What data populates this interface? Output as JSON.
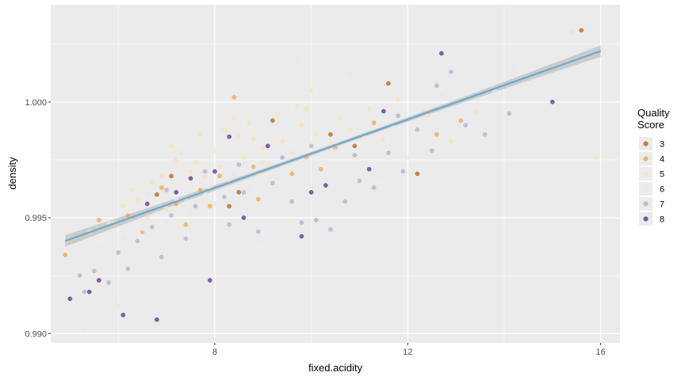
{
  "chart_data": {
    "type": "scatter",
    "title": "",
    "xlabel": "fixed.acidity",
    "ylabel": "density",
    "xlim": [
      4.6,
      16.4
    ],
    "ylim": [
      0.9896,
      1.0042
    ],
    "x_ticks": [
      8,
      12,
      16
    ],
    "y_ticks": [
      0.99,
      0.995,
      1.0
    ],
    "y_tick_labels": [
      "0.990",
      "0.995",
      "1.000"
    ],
    "grid": true,
    "legend": {
      "title": "Quality\nScore",
      "placement": "right",
      "entries": [
        "3",
        "4",
        "5",
        "6",
        "7",
        "8"
      ]
    },
    "series_colors": {
      "3": "#b35806",
      "4": "#f1a340",
      "5": "#fee0b6",
      "6": "#e7e7ef",
      "7": "#b2abd2",
      "8": "#542788"
    },
    "series": [
      {
        "name": "3",
        "points": [
          [
            8.3,
            0.9955
          ],
          [
            10.4,
            0.9986
          ],
          [
            7.1,
            0.9968
          ],
          [
            11.6,
            1.0008
          ],
          [
            6.8,
            0.996
          ],
          [
            9.2,
            0.9992
          ],
          [
            15.6,
            1.0031
          ],
          [
            8.5,
            0.9961
          ],
          [
            12.2,
            0.9969
          ],
          [
            10.9,
            0.9981
          ]
        ]
      },
      {
        "name": "4",
        "points": [
          [
            7.7,
            0.9962
          ],
          [
            8.1,
            0.9968
          ],
          [
            6.2,
            0.9951
          ],
          [
            7.4,
            0.9947
          ],
          [
            8.8,
            0.9972
          ],
          [
            9.9,
            0.9976
          ],
          [
            10.5,
            0.998
          ],
          [
            12.6,
            0.9986
          ],
          [
            6.9,
            0.9963
          ],
          [
            7.2,
            0.9956
          ],
          [
            5.6,
            0.9949
          ],
          [
            8.4,
            1.0002
          ],
          [
            11.3,
            0.9991
          ],
          [
            9.6,
            0.9969
          ],
          [
            7.9,
            0.9955
          ],
          [
            6.5,
            0.9944
          ],
          [
            10.2,
            0.9971
          ],
          [
            13.1,
            0.9992
          ],
          [
            4.9,
            0.9934
          ],
          [
            8.9,
            0.9958
          ]
        ]
      },
      {
        "name": "5",
        "points": [
          [
            7.8,
            0.9968
          ],
          [
            7.5,
            0.997
          ],
          [
            8.1,
            0.9972
          ],
          [
            7.0,
            0.9962
          ],
          [
            6.7,
            0.9965
          ],
          [
            8.6,
            0.9976
          ],
          [
            9.0,
            0.998
          ],
          [
            7.3,
            0.9978
          ],
          [
            8.3,
            0.9966
          ],
          [
            9.4,
            0.9983
          ],
          [
            10.1,
            0.9986
          ],
          [
            6.4,
            0.9958
          ],
          [
            7.6,
            0.9974
          ],
          [
            8.0,
            0.9979
          ],
          [
            8.8,
            0.9984
          ],
          [
            9.8,
            0.999
          ],
          [
            10.6,
            0.9993
          ],
          [
            11.2,
            0.9997
          ],
          [
            6.1,
            0.9955
          ],
          [
            7.9,
            0.9963
          ],
          [
            8.5,
            0.9985
          ],
          [
            9.3,
            0.9995
          ],
          [
            10.0,
            1.0005
          ],
          [
            7.2,
            0.9975
          ],
          [
            6.9,
            0.9968
          ],
          [
            8.2,
            0.9988
          ],
          [
            9.7,
            0.9998
          ],
          [
            11.8,
            1.0001
          ],
          [
            12.4,
            0.9994
          ],
          [
            5.9,
            0.9948
          ],
          [
            7.1,
            0.9981
          ],
          [
            8.7,
            0.9991
          ],
          [
            9.1,
            0.9973
          ],
          [
            10.4,
            0.9982
          ],
          [
            6.6,
            0.995
          ],
          [
            7.4,
            0.9958
          ],
          [
            8.9,
            0.9969
          ],
          [
            9.6,
            0.9978
          ],
          [
            10.8,
            0.9988
          ],
          [
            11.5,
            0.9984
          ],
          [
            6.3,
            0.9962
          ],
          [
            7.7,
            0.9986
          ],
          [
            8.4,
            0.9993
          ],
          [
            9.9,
            0.9997
          ],
          [
            13.4,
            0.9996
          ],
          [
            15.4,
            1.003
          ],
          [
            15.9,
            0.9976
          ],
          [
            5.4,
            0.9944
          ],
          [
            12.9,
            0.9983
          ],
          [
            7.0,
            0.9954
          ]
        ]
      },
      {
        "name": "6",
        "points": [
          [
            6.8,
            0.9952
          ],
          [
            7.2,
            0.9958
          ],
          [
            7.8,
            0.9961
          ],
          [
            8.4,
            0.9969
          ],
          [
            9.0,
            0.9974
          ],
          [
            5.6,
            0.9937
          ],
          [
            6.1,
            0.9941
          ],
          [
            6.5,
            0.9945
          ],
          [
            7.0,
            0.9948
          ],
          [
            7.5,
            0.9953
          ],
          [
            8.0,
            0.9956
          ],
          [
            8.7,
            0.9962
          ],
          [
            9.3,
            0.9967
          ],
          [
            9.9,
            0.9975
          ],
          [
            10.5,
            0.9979
          ],
          [
            11.1,
            0.9985
          ],
          [
            11.7,
            0.9989
          ],
          [
            12.3,
            0.9993
          ],
          [
            13.0,
            0.9997
          ],
          [
            13.8,
            1.0005
          ],
          [
            14.6,
            1.0009
          ],
          [
            5.1,
            0.9925
          ],
          [
            5.3,
            0.9902
          ],
          [
            6.0,
            0.9912
          ],
          [
            6.3,
            0.993
          ],
          [
            7.9,
            0.9901
          ],
          [
            8.9,
            0.994
          ],
          [
            10.2,
            0.9961
          ],
          [
            11.4,
            0.9968
          ],
          [
            12.0,
            0.9976
          ],
          [
            10.5,
            1.0037
          ],
          [
            9.7,
            1.0018
          ],
          [
            8.1,
            0.9988
          ],
          [
            7.4,
            0.9967
          ],
          [
            6.6,
            0.996
          ],
          [
            9.5,
            0.9992
          ],
          [
            10.8,
            1.0012
          ],
          [
            12.7,
            1.0003
          ],
          [
            14.2,
            1.0014
          ],
          [
            5.8,
            0.9948
          ]
        ]
      },
      {
        "name": "7",
        "points": [
          [
            5.2,
            0.9925
          ],
          [
            5.5,
            0.9927
          ],
          [
            6.0,
            0.9935
          ],
          [
            6.4,
            0.994
          ],
          [
            6.7,
            0.9946
          ],
          [
            7.1,
            0.9951
          ],
          [
            7.6,
            0.9955
          ],
          [
            8.2,
            0.9959
          ],
          [
            8.6,
            0.9961
          ],
          [
            9.2,
            0.9965
          ],
          [
            9.6,
            0.9957
          ],
          [
            10.1,
            0.9949
          ],
          [
            10.4,
            0.9945
          ],
          [
            11.0,
            0.9966
          ],
          [
            11.3,
            0.9963
          ],
          [
            11.9,
            0.997
          ],
          [
            12.5,
            0.9979
          ],
          [
            13.2,
            0.999
          ],
          [
            13.6,
            0.9986
          ],
          [
            14.1,
            0.9995
          ],
          [
            12.9,
            1.0013
          ],
          [
            12.6,
            1.0007
          ],
          [
            11.6,
            0.9978
          ],
          [
            10.7,
            0.9957
          ],
          [
            9.8,
            0.9948
          ],
          [
            8.9,
            0.9944
          ],
          [
            8.3,
            0.9947
          ],
          [
            7.4,
            0.9941
          ],
          [
            6.9,
            0.9933
          ],
          [
            6.2,
            0.9928
          ],
          [
            5.8,
            0.9922
          ],
          [
            5.3,
            0.9918
          ],
          [
            7.0,
            0.9962
          ],
          [
            7.8,
            0.997
          ],
          [
            8.5,
            0.9973
          ],
          [
            9.4,
            0.9976
          ],
          [
            10.0,
            0.9981
          ],
          [
            10.9,
            0.9977
          ],
          [
            11.8,
            0.9994
          ],
          [
            12.2,
            0.9988
          ]
        ]
      },
      {
        "name": "8",
        "points": [
          [
            5.0,
            0.9915
          ],
          [
            5.6,
            0.9923
          ],
          [
            6.1,
            0.9908
          ],
          [
            6.8,
            0.9906
          ],
          [
            7.2,
            0.9961
          ],
          [
            7.9,
            0.9923
          ],
          [
            8.6,
            0.995
          ],
          [
            9.1,
            0.9981
          ],
          [
            10.0,
            0.9961
          ],
          [
            10.3,
            0.9964
          ],
          [
            11.2,
            0.9971
          ],
          [
            12.7,
            1.0021
          ],
          [
            15.0,
            1.0
          ],
          [
            7.5,
            0.9967
          ],
          [
            8.3,
            0.9985
          ],
          [
            6.6,
            0.9956
          ],
          [
            9.8,
            0.9942
          ],
          [
            11.5,
            0.9996
          ],
          [
            5.4,
            0.9918
          ],
          [
            8.0,
            0.997
          ]
        ]
      }
    ],
    "trend": {
      "name": "linear fit",
      "points": [
        [
          4.9,
          0.994
        ],
        [
          16.0,
          1.0022
        ]
      ],
      "ci_halfwidth_ends": 0.00025,
      "ci_halfwidth_mid": 8e-05,
      "line_color": "#6da9cf",
      "band_color": "#c0c0c0"
    },
    "panel_color": "#ebebeb",
    "grid_color": "#ffffff"
  }
}
